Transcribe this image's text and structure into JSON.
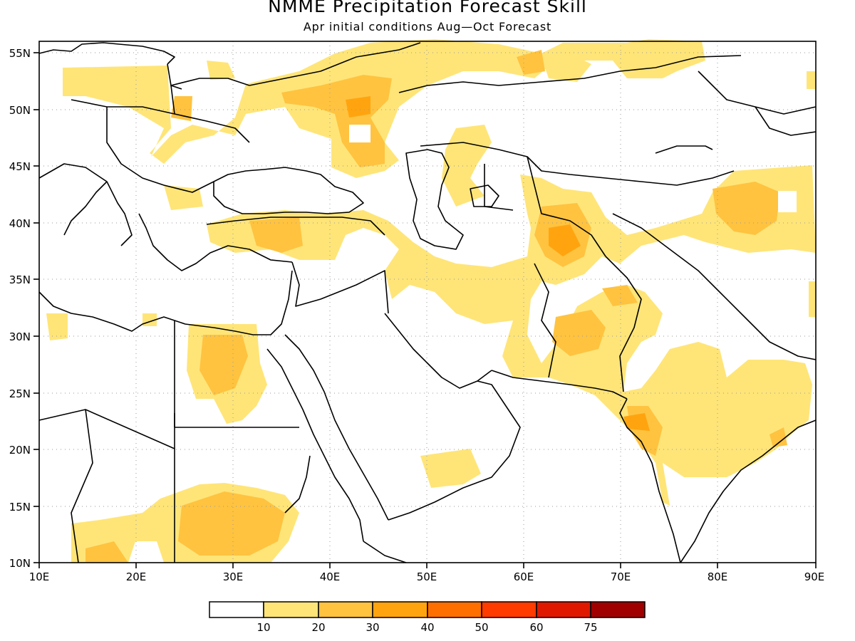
{
  "title": "NMME Precipitation Forecast Skill",
  "subtitle": "Apr initial conditions  Aug—Oct Forecast",
  "axes": {
    "x_ticks": [
      "10E",
      "20E",
      "30E",
      "40E",
      "50E",
      "60E",
      "70E",
      "80E",
      "90E"
    ],
    "y_ticks": [
      "55N",
      "50N",
      "45N",
      "40N",
      "35N",
      "30N",
      "25N",
      "20N",
      "15N",
      "10N"
    ],
    "lon_range": [
      10,
      90
    ],
    "lat_range": [
      10,
      56
    ],
    "grid": "dotted"
  },
  "legend": {
    "placement": "bottom-center",
    "labels": [
      "10",
      "20",
      "30",
      "40",
      "50",
      "60",
      "75"
    ],
    "colors": [
      "#ffffff",
      "#ffe578",
      "#ffc340",
      "#ffa40f",
      "#ff6f00",
      "#ff3b00",
      "#e01800",
      "#a00000"
    ]
  }
}
